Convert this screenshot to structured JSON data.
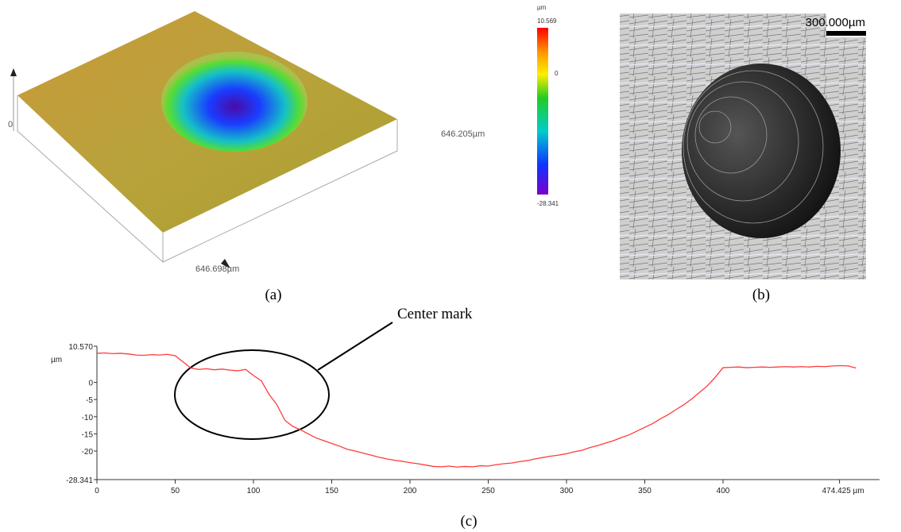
{
  "panel_a": {
    "label": "(a)",
    "z_origin": "0",
    "x_extent": "646.205µm",
    "y_extent": "646.698µm",
    "colorbar": {
      "unit": "µm",
      "ticks": [
        10.569,
        0,
        -28.341
      ]
    }
  },
  "panel_b": {
    "label": "(b)",
    "scale_bar": "300.000µm"
  },
  "chart_data": {
    "type": "line",
    "label": "(c)",
    "annotation": "Center mark",
    "y_unit": "µm",
    "color": "#ff3b3b",
    "xlim": [
      0,
      500
    ],
    "ylim": [
      -28.341,
      10.57
    ],
    "xticks": [
      0,
      50,
      100,
      150,
      200,
      250,
      300,
      350,
      400,
      {
        "value": 474.425,
        "label": "474.425 µm"
      }
    ],
    "yticks": [
      {
        "value": 10.57,
        "label": "10.570"
      },
      0,
      -5,
      -10,
      -15,
      -20,
      -28.341
    ],
    "x": [
      0,
      5,
      10,
      15,
      20,
      25,
      30,
      35,
      40,
      45,
      50,
      55,
      60,
      65,
      70,
      75,
      80,
      85,
      90,
      95,
      100,
      105,
      110,
      115,
      120,
      125,
      130,
      135,
      140,
      145,
      150,
      155,
      160,
      165,
      170,
      175,
      180,
      185,
      190,
      195,
      200,
      205,
      210,
      215,
      220,
      225,
      230,
      235,
      240,
      245,
      250,
      255,
      260,
      265,
      270,
      275,
      280,
      285,
      290,
      295,
      300,
      305,
      310,
      315,
      320,
      325,
      330,
      335,
      340,
      345,
      350,
      355,
      360,
      365,
      370,
      375,
      380,
      385,
      390,
      395,
      400,
      405,
      410,
      415,
      420,
      425,
      430,
      435,
      440,
      445,
      450,
      455,
      460,
      465,
      470,
      475,
      480,
      485
    ],
    "values": [
      8.5,
      8.6,
      8.4,
      8.5,
      8.3,
      8.0,
      7.9,
      8.1,
      8.0,
      8.2,
      7.8,
      6.0,
      4.2,
      3.8,
      4.0,
      3.7,
      3.9,
      3.6,
      3.4,
      3.8,
      2.0,
      0.5,
      -3.5,
      -6.5,
      -11.0,
      -12.8,
      -13.8,
      -15.0,
      -16.2,
      -17.0,
      -17.8,
      -18.6,
      -19.5,
      -20.0,
      -20.6,
      -21.2,
      -21.8,
      -22.3,
      -22.7,
      -23.0,
      -23.4,
      -23.7,
      -24.1,
      -24.5,
      -24.6,
      -24.4,
      -24.7,
      -24.5,
      -24.6,
      -24.3,
      -24.4,
      -24.0,
      -23.7,
      -23.5,
      -23.1,
      -22.8,
      -22.3,
      -21.9,
      -21.5,
      -21.2,
      -20.8,
      -20.2,
      -19.8,
      -19.0,
      -18.4,
      -17.7,
      -17.0,
      -16.1,
      -15.3,
      -14.2,
      -13.1,
      -12.0,
      -10.6,
      -9.4,
      -7.9,
      -6.5,
      -4.8,
      -2.9,
      -1.0,
      1.5,
      4.3,
      4.4,
      4.5,
      4.3,
      4.4,
      4.5,
      4.4,
      4.5,
      4.6,
      4.5,
      4.6,
      4.5,
      4.7,
      4.6,
      4.8,
      4.9,
      4.8,
      4.2
    ]
  }
}
